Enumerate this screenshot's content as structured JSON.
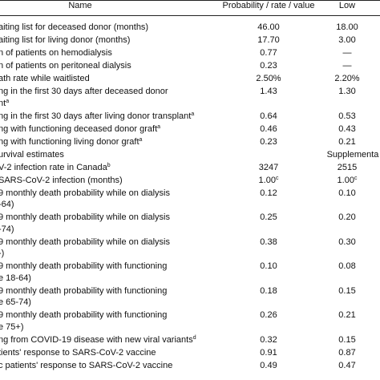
{
  "table": {
    "header": [
      "Name",
      "Probability / rate / value",
      "Low"
    ],
    "rows": [
      {
        "name": [
          "aiting list for deceased donor (months)"
        ],
        "prob": "46.00",
        "low": "18.00"
      },
      {
        "name": [
          "aiting list for living donor (months)"
        ],
        "prob": "17.70",
        "low": "3.00"
      },
      {
        "name": [
          "n of patients on hemodialysis"
        ],
        "prob": "0.77",
        "low": "—"
      },
      {
        "name": [
          "n of patients on peritoneal dialysis"
        ],
        "prob": "0.23",
        "low": "—"
      },
      {
        "name": [
          "ath rate while waitlisted"
        ],
        "prob": "2.50%",
        "low": "2.20%"
      },
      {
        "name": [
          "ng in the first 30 days after deceased donor",
          "nt"
        ],
        "sup": "a",
        "prob": "1.43",
        "low": "1.30"
      },
      {
        "name": [
          "ng in the first 30 days after living donor transplant"
        ],
        "sup": "a",
        "prob": "0.64",
        "low": "0.53"
      },
      {
        "name": [
          "ng with functioning deceased donor graft"
        ],
        "sup": "a",
        "prob": "0.46",
        "low": "0.43"
      },
      {
        "name": [
          "ng with functioning living donor graft"
        ],
        "sup": "a",
        "prob": "0.23",
        "low": "0.21"
      },
      {
        "name": [
          "urvival estimates"
        ],
        "low": "Supplementa"
      },
      {
        "name": [
          "V-2 infection rate in Canada"
        ],
        "sup": "b",
        "prob": "3247",
        "low": "2515"
      },
      {
        "name": [
          "SARS-CoV-2 infection (months)"
        ],
        "prob": "1.00",
        "prob_sup": "c",
        "low": "1.00",
        "low_sup": "c"
      },
      {
        "name": [
          "9 monthly death probability while on dialysis",
          "-64)"
        ],
        "prob": "0.12",
        "low": "0.10"
      },
      {
        "name": [
          "9 monthly death probability while on dialysis",
          "-74)"
        ],
        "prob": "0.25",
        "low": "0.20"
      },
      {
        "name": [
          "9 monthly death probability while on dialysis",
          "-)"
        ],
        "prob": "0.38",
        "low": "0.30"
      },
      {
        "name": [
          "9 monthly death probability with functioning",
          "e 18-64)"
        ],
        "prob": "0.10",
        "low": "0.08"
      },
      {
        "name": [
          "9 monthly death probability with functioning",
          "e 65-74)"
        ],
        "prob": "0.18",
        "low": "0.15"
      },
      {
        "name": [
          "9 monthly death probability with functioning",
          "e 75+)"
        ],
        "prob": "0.26",
        "low": "0.21"
      },
      {
        "name": [
          "ng from COVID-19 disease with new viral variants"
        ],
        "sup": "d",
        "prob": "0.32",
        "low": "0.15"
      },
      {
        "name": [
          "tients' response to SARS-CoV-2 vaccine"
        ],
        "prob": "0.91",
        "low": "0.87"
      },
      {
        "name": [
          "c patients' response to SARS-CoV-2 vaccine"
        ],
        "prob": "0.49",
        "low": "0.47"
      }
    ]
  }
}
